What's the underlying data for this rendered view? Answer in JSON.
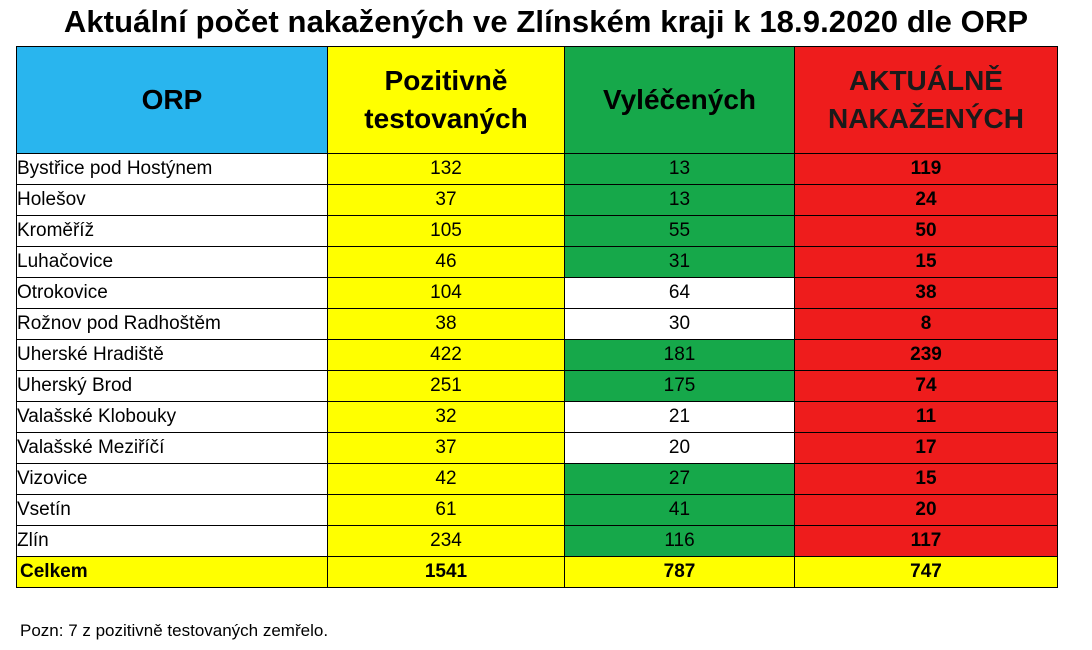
{
  "title": "Aktuální počet nakažených ve Zlínském kraji k 18.9.2020 dle ORP",
  "colors": {
    "orp_header": "#29b5ee",
    "positive": "#ffff00",
    "recovered": "#16a84a",
    "infected": "#ee1c1c"
  },
  "table": {
    "headers": {
      "orp": "ORP",
      "positive": "Pozitivně testovaných",
      "recovered": "Vyléčených",
      "infected": "AKTUÁLNĚ NAKAŽENÝCH"
    },
    "rows": [
      {
        "name": "Bystřice pod Hostýnem",
        "positive": "132",
        "recovered": "13",
        "infected": "119",
        "recovered_bg": "green"
      },
      {
        "name": "Holešov",
        "positive": "37",
        "recovered": "13",
        "infected": "24",
        "recovered_bg": "green"
      },
      {
        "name": "Kroměříž",
        "positive": "105",
        "recovered": "55",
        "infected": "50",
        "recovered_bg": "green"
      },
      {
        "name": "Luhačovice",
        "positive": "46",
        "recovered": "31",
        "infected": "15",
        "recovered_bg": "green"
      },
      {
        "name": "Otrokovice",
        "positive": "104",
        "recovered": "64",
        "infected": "38",
        "recovered_bg": "white"
      },
      {
        "name": "Rožnov pod Radhoštěm",
        "positive": "38",
        "recovered": "30",
        "infected": "8",
        "recovered_bg": "white"
      },
      {
        "name": "Uherské Hradiště",
        "positive": "422",
        "recovered": "181",
        "infected": "239",
        "recovered_bg": "green"
      },
      {
        "name": "Uherský Brod",
        "positive": "251",
        "recovered": "175",
        "infected": "74",
        "recovered_bg": "green"
      },
      {
        "name": "Valašské Klobouky",
        "positive": "32",
        "recovered": "21",
        "infected": "11",
        "recovered_bg": "white"
      },
      {
        "name": "Valašské Meziříčí",
        "positive": "37",
        "recovered": "20",
        "infected": "17",
        "recovered_bg": "white"
      },
      {
        "name": "Vizovice",
        "positive": "42",
        "recovered": "27",
        "infected": "15",
        "recovered_bg": "green"
      },
      {
        "name": "Vsetín",
        "positive": "61",
        "recovered": "41",
        "infected": "20",
        "recovered_bg": "green"
      },
      {
        "name": "Zlín",
        "positive": "234",
        "recovered": "116",
        "infected": "117",
        "recovered_bg": "green"
      }
    ],
    "total": {
      "name": "Celkem",
      "positive": "1541",
      "recovered": "787",
      "infected": "747"
    }
  },
  "note": "Pozn: 7 z pozitivně testovaných zemřelo."
}
